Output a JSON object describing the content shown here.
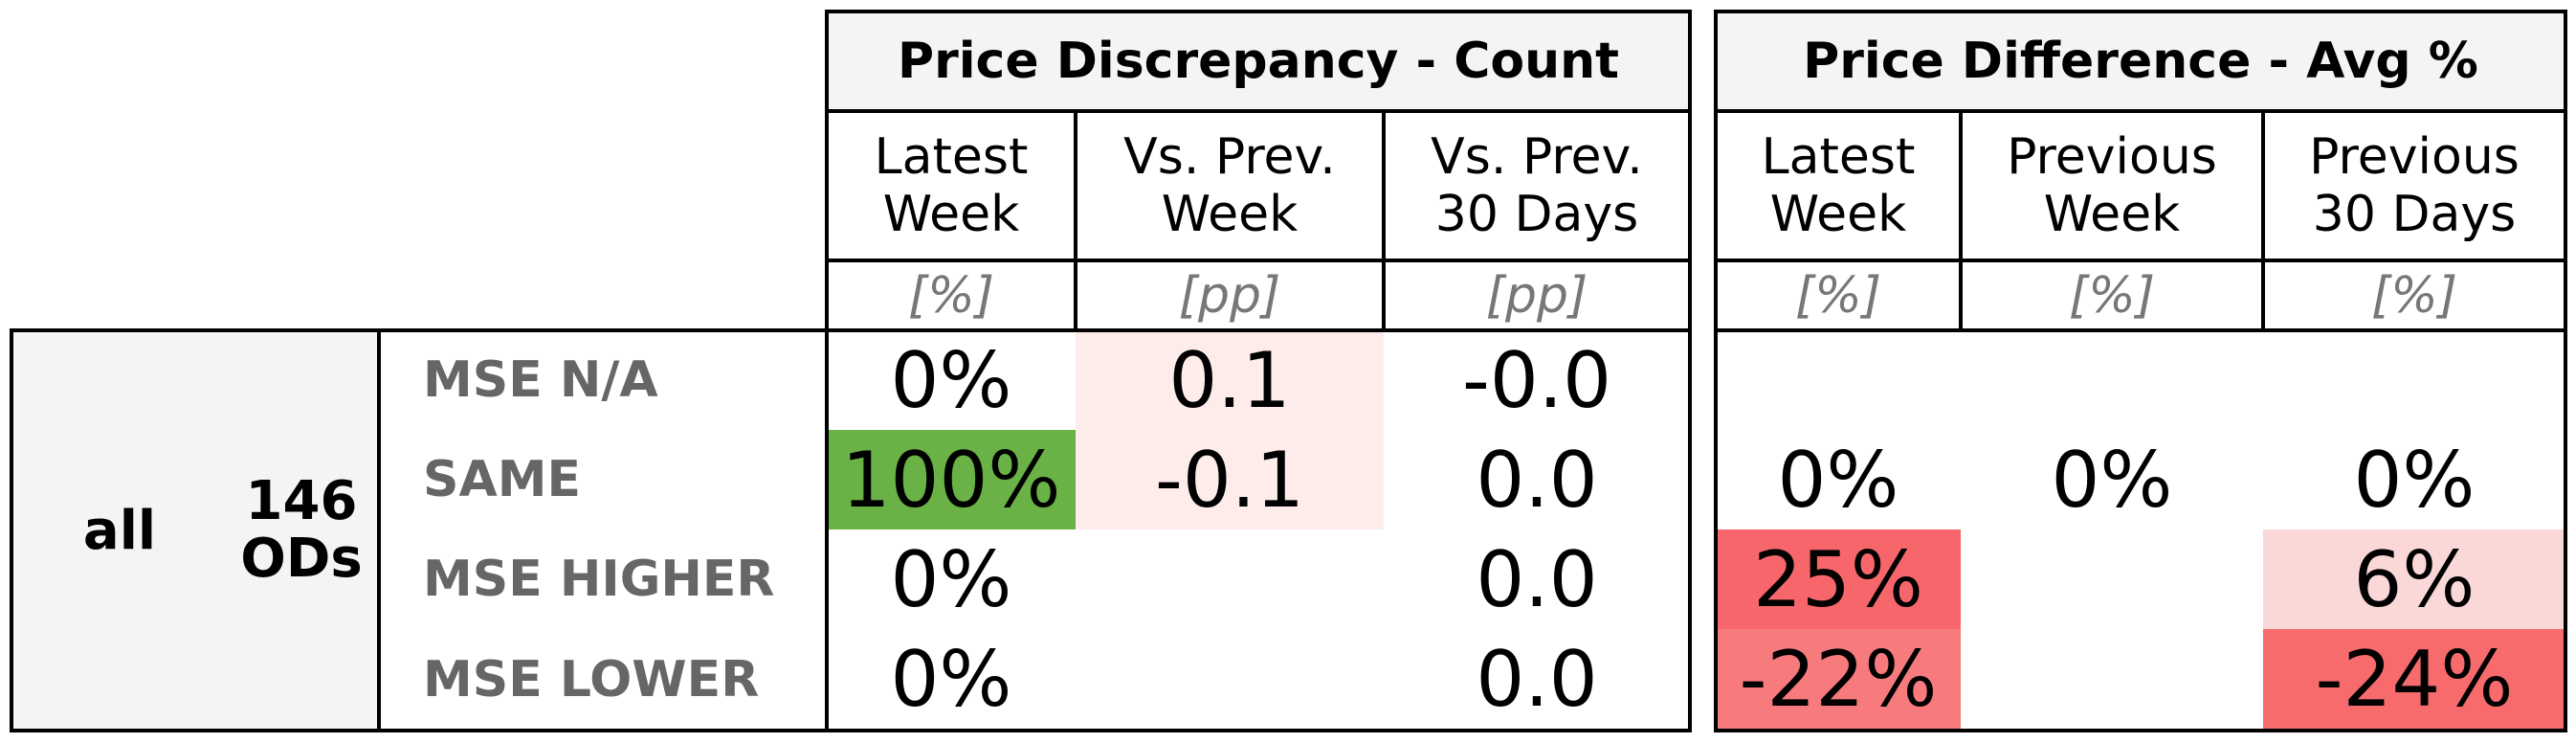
{
  "chart_data": {
    "type": "table",
    "group": {
      "label": "all",
      "count_label": "146\nODs"
    },
    "sections": [
      {
        "title": "Price Discrepancy - Count",
        "columns": [
          {
            "header": "Latest\nWeek",
            "unit": "[%]"
          },
          {
            "header": "Vs. Prev.\nWeek",
            "unit": "[pp]"
          },
          {
            "header": "Vs. Prev.\n30 Days",
            "unit": "[pp]"
          }
        ]
      },
      {
        "title": "Price Difference - Avg %",
        "columns": [
          {
            "header": "Latest\nWeek",
            "unit": "[%]"
          },
          {
            "header": "Previous\nWeek",
            "unit": "[%]"
          },
          {
            "header": "Previous\n30 Days",
            "unit": "[%]"
          }
        ]
      }
    ],
    "rows": [
      {
        "label": "MSE N/A",
        "values": [
          "0%",
          "0.1",
          "-0.0",
          "",
          "",
          ""
        ]
      },
      {
        "label": "SAME",
        "values": [
          "100%",
          "-0.1",
          "0.0",
          "0%",
          "0%",
          "0%"
        ]
      },
      {
        "label": "MSE HIGHER",
        "values": [
          "0%",
          "",
          "0.0",
          "25%",
          "",
          "6%"
        ]
      },
      {
        "label": "MSE LOWER",
        "values": [
          "0%",
          "",
          "0.0",
          "-22%",
          "",
          "-24%"
        ]
      }
    ],
    "cell_colors": [
      [
        "#ffffff",
        "#fdecea",
        "#ffffff",
        "#ffffff",
        "#ffffff",
        "#ffffff"
      ],
      [
        "#6ab245",
        "#fdecea",
        "#ffffff",
        "#ffffff",
        "#ffffff",
        "#ffffff"
      ],
      [
        "#ffffff",
        "#ffffff",
        "#ffffff",
        "#f7666b",
        "#ffffff",
        "#fbd8d8"
      ],
      [
        "#ffffff",
        "#ffffff",
        "#ffffff",
        "#f77a7c",
        "#ffffff",
        "#f76b6d"
      ]
    ]
  }
}
